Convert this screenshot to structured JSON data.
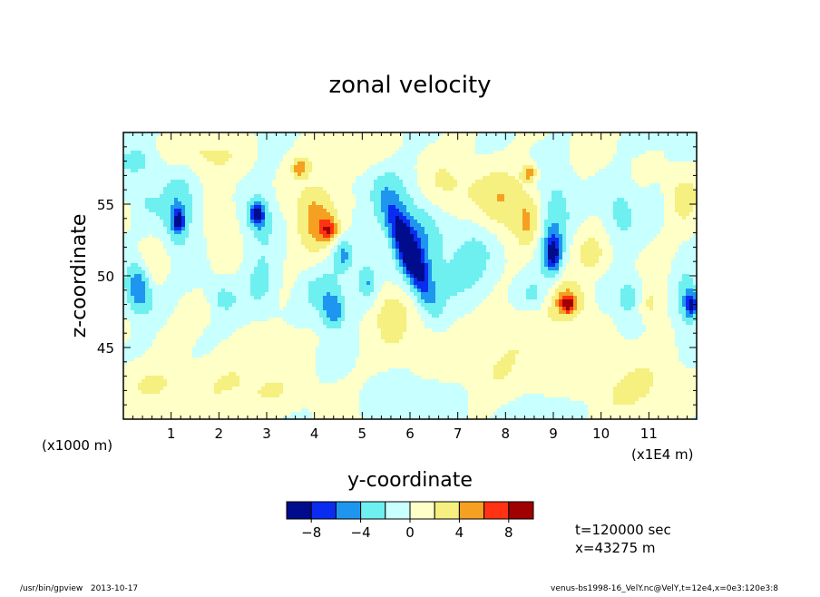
{
  "chart_data": {
    "type": "heatmap",
    "title": "zonal velocity",
    "xlabel": "y-coordinate",
    "ylabel": "z-coordinate",
    "x_scale_note_left": "(x1000 m)",
    "x_scale_note_right": "(x1E4 m)",
    "xlim": [
      0,
      12
    ],
    "ylim": [
      40,
      60
    ],
    "x_ticks": [
      "1",
      "2",
      "3",
      "4",
      "5",
      "6",
      "7",
      "8",
      "9",
      "10",
      "11"
    ],
    "y_ticks": [
      "45",
      "50",
      "55"
    ],
    "colorbar": {
      "levels": [
        -10,
        -8,
        -6,
        -4,
        -2,
        0,
        2,
        4,
        6,
        8,
        10
      ],
      "labels": [
        "-8",
        "-4",
        "0",
        "4",
        "8"
      ],
      "colors": [
        "#000c8c",
        "#0a2cf0",
        "#1e96f0",
        "#6ef0f0",
        "#c8ffff",
        "#ffffc8",
        "#f5f080",
        "#f5a020",
        "#ff3214",
        "#a00000"
      ]
    },
    "features": [
      {
        "x": 6.0,
        "z": 51.5,
        "v": -9.5,
        "rx": 0.25,
        "rz": 3.2,
        "tilt": -0.35
      },
      {
        "x": 6.1,
        "z": 52.8,
        "v": -4.5,
        "rx": 0.6,
        "rz": 4.2,
        "tilt": -0.3
      },
      {
        "x": 5.6,
        "z": 47.5,
        "v": 3.0,
        "rx": 0.35,
        "rz": 1.8,
        "tilt": 0.0
      },
      {
        "x": 7.3,
        "z": 51.0,
        "v": -2.5,
        "rx": 0.5,
        "rz": 3.0,
        "tilt": 0.0
      },
      {
        "x": 4.0,
        "z": 54.0,
        "v": 4.5,
        "rx": 0.4,
        "rz": 2.5,
        "tilt": 0.0
      },
      {
        "x": 4.3,
        "z": 53.2,
        "v": 5.5,
        "rx": 0.2,
        "rz": 0.8,
        "tilt": 0.0
      },
      {
        "x": 4.1,
        "z": 49.0,
        "v": -2.8,
        "rx": 0.5,
        "rz": 1.5,
        "tilt": 0.0
      },
      {
        "x": 4.4,
        "z": 47.5,
        "v": -5.5,
        "rx": 0.25,
        "rz": 1.2,
        "tilt": 0.0
      },
      {
        "x": 4.6,
        "z": 51.5,
        "v": -4.0,
        "rx": 0.2,
        "rz": 1.0,
        "tilt": 0.0
      },
      {
        "x": 5.1,
        "z": 49.5,
        "v": -4.0,
        "rx": 0.2,
        "rz": 1.2,
        "tilt": 0.0
      },
      {
        "x": 1.15,
        "z": 54.0,
        "v": -4.5,
        "rx": 0.35,
        "rz": 3.0,
        "tilt": 0.0
      },
      {
        "x": 1.15,
        "z": 53.8,
        "v": -7.0,
        "rx": 0.12,
        "rz": 0.7,
        "tilt": 0.0
      },
      {
        "x": 2.8,
        "z": 54.3,
        "v": -7.0,
        "rx": 0.15,
        "rz": 0.8,
        "tilt": 0.0
      },
      {
        "x": 2.9,
        "z": 54.0,
        "v": -3.0,
        "rx": 0.3,
        "rz": 2.0,
        "tilt": 0.0
      },
      {
        "x": 2.9,
        "z": 49.5,
        "v": -3.0,
        "rx": 0.35,
        "rz": 2.0,
        "tilt": 0.0
      },
      {
        "x": 2.0,
        "z": 48.5,
        "v": -2.5,
        "rx": 0.4,
        "rz": 1.2,
        "tilt": 0.0
      },
      {
        "x": 1.6,
        "z": 48.0,
        "v": 2.5,
        "rx": 0.35,
        "rz": 1.2,
        "tilt": 0.0
      },
      {
        "x": 2.1,
        "z": 53.5,
        "v": 2.5,
        "rx": 0.3,
        "rz": 2.2,
        "tilt": 0.0
      },
      {
        "x": 3.7,
        "z": 57.5,
        "v": 5.0,
        "rx": 0.15,
        "rz": 0.6,
        "tilt": 0.0
      },
      {
        "x": 0.3,
        "z": 49.5,
        "v": -5.5,
        "rx": 0.25,
        "rz": 1.5,
        "tilt": 0.0
      },
      {
        "x": 0.4,
        "z": 48.0,
        "v": -3.0,
        "rx": 0.35,
        "rz": 1.3,
        "tilt": 0.0
      },
      {
        "x": 0.6,
        "z": 51.0,
        "v": 2.0,
        "rx": 0.4,
        "rz": 1.5,
        "tilt": 0.0
      },
      {
        "x": 0.5,
        "z": 55.0,
        "v": -2.2,
        "rx": 0.3,
        "rz": 1.5,
        "tilt": 0.0
      },
      {
        "x": 8.0,
        "z": 55.0,
        "v": 4.0,
        "rx": 0.55,
        "rz": 2.5,
        "tilt": 0.0
      },
      {
        "x": 8.5,
        "z": 57.2,
        "v": 5.5,
        "rx": 0.15,
        "rz": 0.6,
        "tilt": 0.0
      },
      {
        "x": 8.5,
        "z": 53.5,
        "v": 3.0,
        "rx": 0.25,
        "rz": 2.0,
        "tilt": 0.0
      },
      {
        "x": 9.0,
        "z": 53.5,
        "v": -4.5,
        "rx": 0.35,
        "rz": 3.2,
        "tilt": 0.1
      },
      {
        "x": 9.0,
        "z": 51.5,
        "v": -7.0,
        "rx": 0.15,
        "rz": 1.3,
        "tilt": 0.0
      },
      {
        "x": 9.3,
        "z": 48.3,
        "v": 4.5,
        "rx": 0.45,
        "rz": 1.5,
        "tilt": 0.0
      },
      {
        "x": 9.3,
        "z": 48.0,
        "v": 6.0,
        "rx": 0.15,
        "rz": 0.6,
        "tilt": 0.0
      },
      {
        "x": 8.6,
        "z": 48.5,
        "v": -3.0,
        "rx": 0.4,
        "rz": 1.2,
        "tilt": 0.0
      },
      {
        "x": 9.8,
        "z": 51.5,
        "v": 2.5,
        "rx": 0.35,
        "rz": 1.5,
        "tilt": 0.0
      },
      {
        "x": 10.4,
        "z": 54.5,
        "v": -2.5,
        "rx": 0.3,
        "rz": 2.0,
        "tilt": 0.0
      },
      {
        "x": 10.6,
        "z": 48.5,
        "v": -3.0,
        "rx": 0.3,
        "rz": 1.5,
        "tilt": 0.0
      },
      {
        "x": 11.0,
        "z": 48.0,
        "v": 3.0,
        "rx": 0.25,
        "rz": 1.2,
        "tilt": 0.0
      },
      {
        "x": 11.8,
        "z": 48.5,
        "v": -4.5,
        "rx": 0.25,
        "rz": 2.0,
        "tilt": 0.0
      },
      {
        "x": 11.9,
        "z": 48.0,
        "v": -6.5,
        "rx": 0.12,
        "rz": 0.8,
        "tilt": 0.0
      },
      {
        "x": 11.7,
        "z": 55.5,
        "v": 2.5,
        "rx": 0.3,
        "rz": 2.0,
        "tilt": 0.0
      },
      {
        "x": 7.5,
        "z": 45.0,
        "v": 2.0,
        "rx": 1.6,
        "rz": 3.0,
        "tilt": 0.0
      },
      {
        "x": 6.8,
        "z": 56.0,
        "v": 2.0,
        "rx": 0.8,
        "rz": 2.0,
        "tilt": 0.0
      },
      {
        "x": 2.5,
        "z": 42.0,
        "v": 2.0,
        "rx": 1.5,
        "rz": 2.0,
        "tilt": 0.0
      },
      {
        "x": 10.5,
        "z": 42.0,
        "v": 2.2,
        "rx": 1.2,
        "rz": 2.0,
        "tilt": 0.0
      },
      {
        "x": 0.8,
        "z": 42.5,
        "v": 2.0,
        "rx": 0.7,
        "rz": 1.5,
        "tilt": 0.0
      },
      {
        "x": 6.0,
        "z": 41.5,
        "v": -2.0,
        "rx": 1.0,
        "rz": 1.5,
        "tilt": 0.0
      },
      {
        "x": 8.8,
        "z": 40.5,
        "v": -2.0,
        "rx": 0.8,
        "rz": 1.2,
        "tilt": 0.0
      },
      {
        "x": 4.6,
        "z": 58.5,
        "v": 2.0,
        "rx": 1.0,
        "rz": 1.2,
        "tilt": 0.0
      },
      {
        "x": 1.8,
        "z": 58.5,
        "v": 2.0,
        "rx": 0.8,
        "rz": 1.2,
        "tilt": 0.0
      },
      {
        "x": 3.3,
        "z": 45.5,
        "v": 2.0,
        "rx": 0.5,
        "rz": 1.0,
        "tilt": 0.0
      },
      {
        "x": 0.3,
        "z": 58.0,
        "v": -2.0,
        "rx": 0.4,
        "rz": 1.0,
        "tilt": 0.0
      }
    ]
  },
  "time_label": "t=120000 sec",
  "x_position_label": "x=43275 m",
  "footer_left": "/usr/bin/gpview   2013-10-17",
  "footer_right": "venus-bs1998-16_VelY.nc@VelY,t=12e4,x=0e3:120e3:8"
}
